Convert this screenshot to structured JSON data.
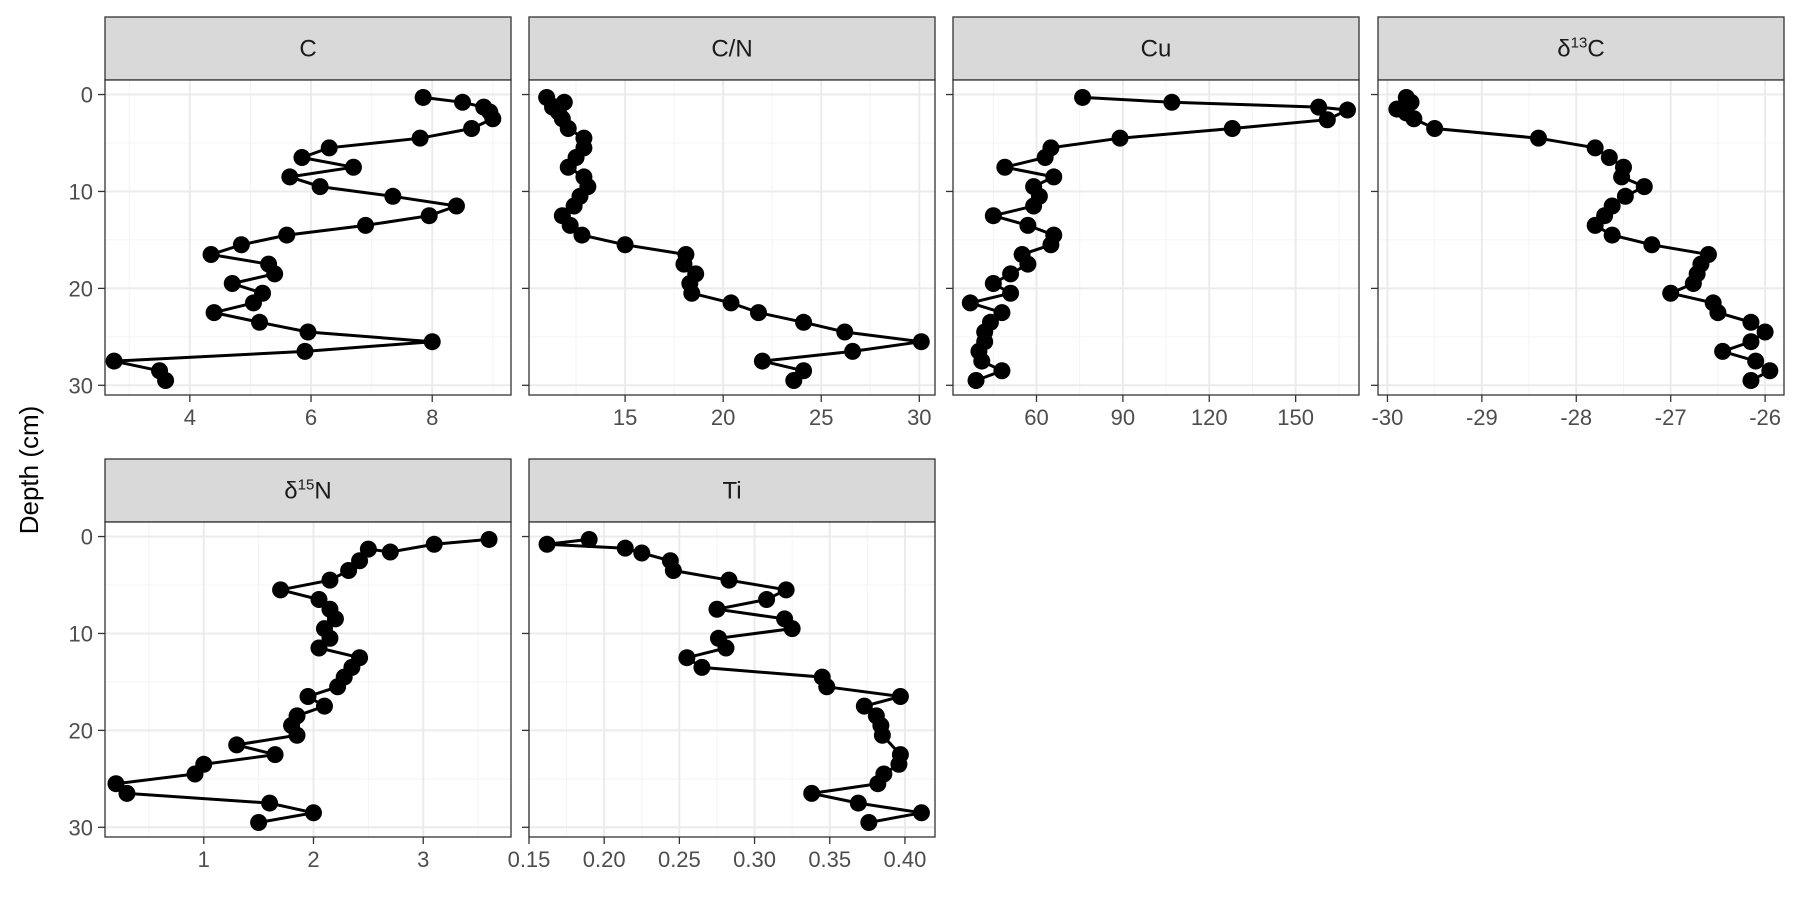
{
  "chart_data": {
    "type": "line",
    "ylabel": "Depth (cm)",
    "y_reversed": true,
    "ylim": [
      31,
      -1.5
    ],
    "y_ticks": [
      0,
      10,
      20,
      30
    ],
    "y_tick_labels": [
      "0",
      "10",
      "20",
      "30"
    ],
    "facet_layout": {
      "columns": 4,
      "shared_y": true,
      "background": "white",
      "grid": true
    },
    "facets": [
      {
        "label": "C",
        "strip": "C",
        "xlim": [
          2.6,
          9.3
        ],
        "x_ticks": [
          4,
          6,
          8
        ],
        "x_tick_labels": [
          "4",
          "6",
          "8"
        ],
        "points": [
          [
            7.85,
            0.3
          ],
          [
            8.5,
            0.8
          ],
          [
            8.85,
            1.3
          ],
          [
            8.95,
            1.8
          ],
          [
            9.0,
            2.5
          ],
          [
            8.65,
            3.5
          ],
          [
            7.8,
            4.5
          ],
          [
            6.3,
            5.5
          ],
          [
            5.85,
            6.5
          ],
          [
            6.7,
            7.5
          ],
          [
            5.65,
            8.5
          ],
          [
            6.15,
            9.5
          ],
          [
            7.35,
            10.5
          ],
          [
            8.4,
            11.5
          ],
          [
            7.95,
            12.5
          ],
          [
            6.9,
            13.5
          ],
          [
            5.6,
            14.5
          ],
          [
            4.85,
            15.5
          ],
          [
            4.35,
            16.5
          ],
          [
            5.3,
            17.5
          ],
          [
            5.4,
            18.5
          ],
          [
            4.7,
            19.5
          ],
          [
            5.2,
            20.5
          ],
          [
            5.05,
            21.5
          ],
          [
            4.4,
            22.5
          ],
          [
            5.15,
            23.5
          ],
          [
            5.95,
            24.5
          ],
          [
            8.0,
            25.5
          ],
          [
            5.9,
            26.5
          ],
          [
            2.75,
            27.5
          ],
          [
            3.5,
            28.5
          ],
          [
            3.6,
            29.5
          ]
        ]
      },
      {
        "label": "C/N",
        "strip": "C/N",
        "xlim": [
          10.1,
          30.8
        ],
        "x_ticks": [
          15,
          20,
          25,
          30
        ],
        "x_tick_labels": [
          "15",
          "20",
          "25",
          "30"
        ],
        "points": [
          [
            11.0,
            0.3
          ],
          [
            11.9,
            0.8
          ],
          [
            11.3,
            1.3
          ],
          [
            11.6,
            1.8
          ],
          [
            11.8,
            2.5
          ],
          [
            12.1,
            3.5
          ],
          [
            12.9,
            4.5
          ],
          [
            12.9,
            5.5
          ],
          [
            12.5,
            6.5
          ],
          [
            12.1,
            7.5
          ],
          [
            12.9,
            8.5
          ],
          [
            13.1,
            9.5
          ],
          [
            12.7,
            10.5
          ],
          [
            12.4,
            11.5
          ],
          [
            11.8,
            12.5
          ],
          [
            12.2,
            13.5
          ],
          [
            12.8,
            14.5
          ],
          [
            15.0,
            15.5
          ],
          [
            18.1,
            16.5
          ],
          [
            18.0,
            17.5
          ],
          [
            18.6,
            18.5
          ],
          [
            18.3,
            19.5
          ],
          [
            18.4,
            20.5
          ],
          [
            20.4,
            21.5
          ],
          [
            21.8,
            22.5
          ],
          [
            24.1,
            23.5
          ],
          [
            26.2,
            24.5
          ],
          [
            30.1,
            25.5
          ],
          [
            26.6,
            26.5
          ],
          [
            22.0,
            27.5
          ],
          [
            24.1,
            28.5
          ],
          [
            23.6,
            29.5
          ]
        ]
      },
      {
        "label": "Cu",
        "strip": "Cu",
        "xlim": [
          31,
          172
        ],
        "x_ticks": [
          60,
          90,
          120,
          150
        ],
        "x_tick_labels": [
          "60",
          "90",
          "120",
          "150"
        ],
        "points": [
          [
            76,
            0.3
          ],
          [
            107,
            0.8
          ],
          [
            158,
            1.3
          ],
          [
            168,
            1.6
          ],
          [
            161,
            2.6
          ],
          [
            128,
            3.5
          ],
          [
            89,
            4.5
          ],
          [
            65,
            5.5
          ],
          [
            63,
            6.5
          ],
          [
            49,
            7.5
          ],
          [
            66,
            8.5
          ],
          [
            59,
            9.5
          ],
          [
            61,
            10.5
          ],
          [
            59,
            11.5
          ],
          [
            45,
            12.5
          ],
          [
            57,
            13.5
          ],
          [
            66,
            14.5
          ],
          [
            65,
            15.5
          ],
          [
            55,
            16.5
          ],
          [
            57,
            17.5
          ],
          [
            51,
            18.5
          ],
          [
            45,
            19.5
          ],
          [
            51,
            20.5
          ],
          [
            37,
            21.5
          ],
          [
            48,
            22.5
          ],
          [
            44,
            23.5
          ],
          [
            42,
            24.5
          ],
          [
            42,
            25.5
          ],
          [
            40,
            26.5
          ],
          [
            41,
            27.5
          ],
          [
            48,
            28.5
          ],
          [
            39,
            29.5
          ]
        ]
      },
      {
        "label": "δ13C",
        "strip": "δ",
        "strip_sup": "13",
        "strip_suffix": "C",
        "xlim": [
          -30.1,
          -25.8
        ],
        "x_ticks": [
          -30,
          -29,
          -28,
          -27,
          -26
        ],
        "x_tick_labels": [
          "-30",
          "-29",
          "-28",
          "-27",
          "-26"
        ],
        "points": [
          [
            -29.8,
            0.3
          ],
          [
            -29.75,
            0.8
          ],
          [
            -29.82,
            1.2
          ],
          [
            -29.9,
            1.5
          ],
          [
            -29.8,
            1.9
          ],
          [
            -29.72,
            2.5
          ],
          [
            -29.5,
            3.5
          ],
          [
            -28.4,
            4.5
          ],
          [
            -27.8,
            5.5
          ],
          [
            -27.65,
            6.5
          ],
          [
            -27.5,
            7.5
          ],
          [
            -27.52,
            8.5
          ],
          [
            -27.28,
            9.5
          ],
          [
            -27.48,
            10.5
          ],
          [
            -27.62,
            11.5
          ],
          [
            -27.7,
            12.5
          ],
          [
            -27.8,
            13.5
          ],
          [
            -27.62,
            14.5
          ],
          [
            -27.2,
            15.5
          ],
          [
            -26.6,
            16.5
          ],
          [
            -26.68,
            17.5
          ],
          [
            -26.72,
            18.5
          ],
          [
            -26.76,
            19.5
          ],
          [
            -27.0,
            20.5
          ],
          [
            -26.55,
            21.5
          ],
          [
            -26.5,
            22.5
          ],
          [
            -26.15,
            23.5
          ],
          [
            -26.0,
            24.5
          ],
          [
            -26.15,
            25.5
          ],
          [
            -26.45,
            26.5
          ],
          [
            -26.1,
            27.5
          ],
          [
            -25.95,
            28.5
          ],
          [
            -26.15,
            29.5
          ]
        ]
      },
      {
        "label": "δ15N",
        "strip": "δ",
        "strip_sup": "15",
        "strip_suffix": "N",
        "xlim": [
          0.1,
          3.8
        ],
        "x_ticks": [
          1,
          2,
          3
        ],
        "x_tick_labels": [
          "1",
          "2",
          "3"
        ],
        "points": [
          [
            3.6,
            0.3
          ],
          [
            3.1,
            0.8
          ],
          [
            2.7,
            1.6
          ],
          [
            2.5,
            1.3
          ],
          [
            2.42,
            2.5
          ],
          [
            2.32,
            3.5
          ],
          [
            2.15,
            4.5
          ],
          [
            1.7,
            5.5
          ],
          [
            2.05,
            6.5
          ],
          [
            2.15,
            7.5
          ],
          [
            2.2,
            8.5
          ],
          [
            2.1,
            9.5
          ],
          [
            2.15,
            10.5
          ],
          [
            2.05,
            11.5
          ],
          [
            2.42,
            12.5
          ],
          [
            2.35,
            13.5
          ],
          [
            2.28,
            14.5
          ],
          [
            2.22,
            15.5
          ],
          [
            1.95,
            16.5
          ],
          [
            2.1,
            17.5
          ],
          [
            1.85,
            18.5
          ],
          [
            1.8,
            19.5
          ],
          [
            1.85,
            20.5
          ],
          [
            1.3,
            21.5
          ],
          [
            1.65,
            22.5
          ],
          [
            1.0,
            23.5
          ],
          [
            0.92,
            24.5
          ],
          [
            0.2,
            25.5
          ],
          [
            0.3,
            26.5
          ],
          [
            1.6,
            27.5
          ],
          [
            2.0,
            28.5
          ],
          [
            1.5,
            29.5
          ]
        ]
      },
      {
        "label": "Ti",
        "strip": "Ti",
        "xlim": [
          0.15,
          0.42
        ],
        "x_ticks": [
          0.15,
          0.2,
          0.25,
          0.3,
          0.35,
          0.4
        ],
        "x_tick_labels": [
          "0.15",
          "0.20",
          "0.25",
          "0.30",
          "0.35",
          "0.40"
        ],
        "points": [
          [
            0.19,
            0.3
          ],
          [
            0.162,
            0.8
          ],
          [
            0.214,
            1.2
          ],
          [
            0.225,
            1.7
          ],
          [
            0.244,
            2.5
          ],
          [
            0.246,
            3.5
          ],
          [
            0.283,
            4.5
          ],
          [
            0.321,
            5.5
          ],
          [
            0.308,
            6.5
          ],
          [
            0.275,
            7.5
          ],
          [
            0.32,
            8.5
          ],
          [
            0.325,
            9.5
          ],
          [
            0.276,
            10.5
          ],
          [
            0.281,
            11.5
          ],
          [
            0.255,
            12.5
          ],
          [
            0.265,
            13.5
          ],
          [
            0.345,
            14.5
          ],
          [
            0.348,
            15.5
          ],
          [
            0.397,
            16.5
          ],
          [
            0.373,
            17.5
          ],
          [
            0.381,
            18.5
          ],
          [
            0.384,
            19.5
          ],
          [
            0.385,
            20.5
          ],
          [
            0.397,
            22.5
          ],
          [
            0.396,
            23.5
          ],
          [
            0.386,
            24.5
          ],
          [
            0.382,
            25.5
          ],
          [
            0.338,
            26.5
          ],
          [
            0.369,
            27.5
          ],
          [
            0.411,
            28.5
          ],
          [
            0.376,
            29.5
          ]
        ]
      }
    ]
  }
}
